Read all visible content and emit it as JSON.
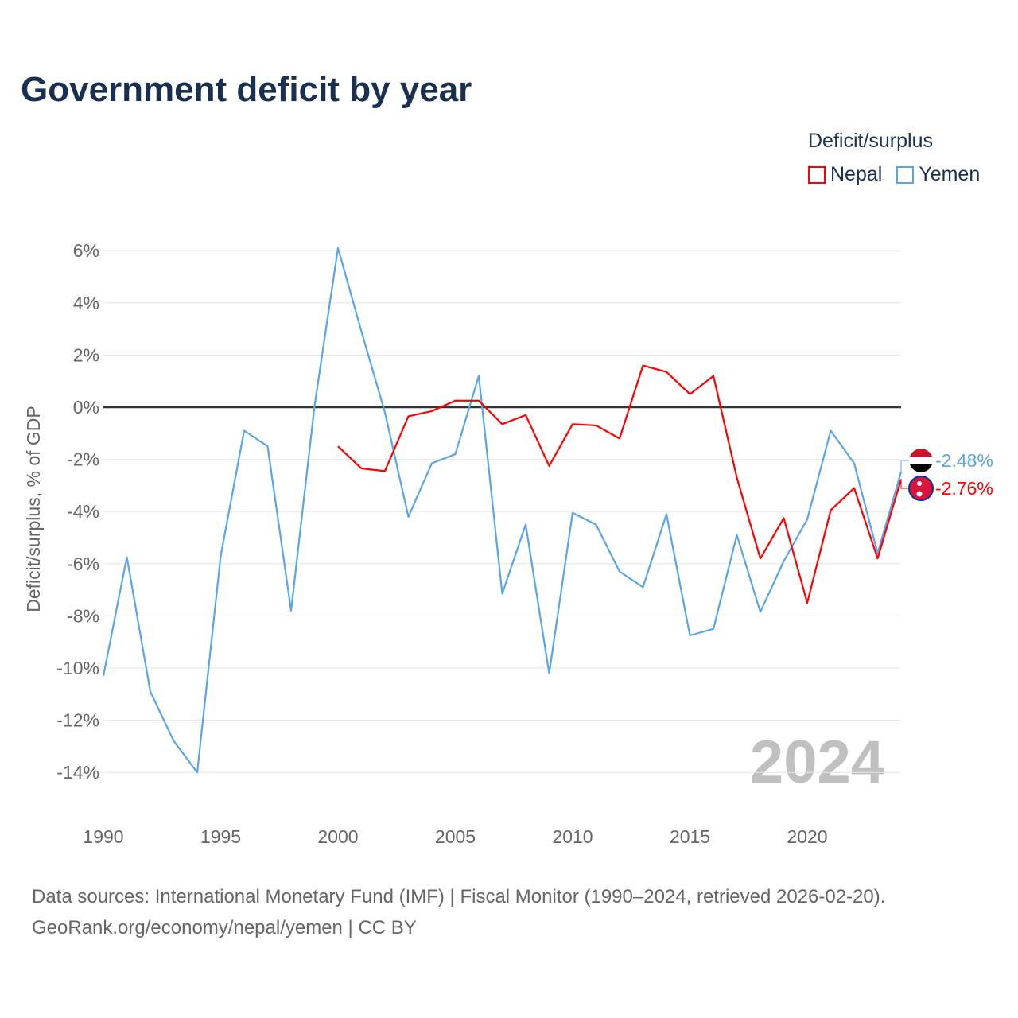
{
  "chart_data": {
    "type": "line",
    "title": "Government deficit by year",
    "xlabel": "",
    "ylabel": "Deficit/surplus, % of GDP",
    "legend_title": "Deficit/surplus",
    "legend_position": "top-right",
    "xlim": [
      1990,
      2024
    ],
    "ylim": [
      -15,
      6.5
    ],
    "x_ticks": [
      1990,
      1995,
      2000,
      2005,
      2010,
      2015,
      2020
    ],
    "y_ticks": [
      6,
      4,
      2,
      0,
      -2,
      -4,
      -6,
      -8,
      -10,
      -12,
      -14
    ],
    "y_tick_labels": [
      "6%",
      "4%",
      "2%",
      "0%",
      "-2%",
      "-4%",
      "-6%",
      "-8%",
      "-10%",
      "-12%",
      "-14%"
    ],
    "grid": true,
    "year_watermark": "2024",
    "series": [
      {
        "name": "Nepal",
        "color": "#ff0000",
        "end_label": "-2.76%",
        "x": [
          2000,
          2001,
          2002,
          2003,
          2004,
          2005,
          2006,
          2007,
          2008,
          2009,
          2010,
          2011,
          2012,
          2013,
          2014,
          2015,
          2016,
          2017,
          2018,
          2019,
          2020,
          2021,
          2022,
          2023,
          2024
        ],
        "values": [
          -1.5,
          -2.35,
          -2.45,
          -0.35,
          -0.15,
          0.25,
          0.25,
          -0.65,
          -0.3,
          -2.25,
          -0.65,
          -0.7,
          -1.2,
          1.6,
          1.35,
          0.5,
          1.2,
          -2.7,
          -5.8,
          -4.25,
          -7.5,
          -3.95,
          -3.1,
          -5.8,
          -2.76
        ]
      },
      {
        "name": "Yemen",
        "color": "#5aa5e8",
        "end_label": "-2.48%",
        "x": [
          1990,
          1991,
          1992,
          1993,
          1994,
          1995,
          1996,
          1997,
          1998,
          1999,
          2000,
          2001,
          2002,
          2003,
          2004,
          2005,
          2006,
          2007,
          2008,
          2009,
          2010,
          2011,
          2012,
          2013,
          2014,
          2015,
          2016,
          2017,
          2018,
          2019,
          2020,
          2021,
          2022,
          2023,
          2024
        ],
        "values": [
          -10.3,
          -5.75,
          -10.9,
          -12.8,
          -14.0,
          -5.7,
          -0.9,
          -1.5,
          -7.8,
          0.05,
          6.1,
          2.9,
          -0.2,
          -4.2,
          -2.15,
          -1.8,
          1.2,
          -7.15,
          -4.5,
          -10.2,
          -4.05,
          -4.5,
          -6.3,
          -6.9,
          -4.1,
          -8.75,
          -8.5,
          -4.9,
          -7.85,
          -5.9,
          -4.3,
          -0.9,
          -2.15,
          -5.6,
          -2.48
        ]
      }
    ]
  },
  "source_line1": "Data sources: International Monetary Fund (IMF) | Fiscal Monitor (1990–2024, retrieved 2026-02-20).",
  "source_line2": "GeoRank.org/economy/nepal/yemen | CC BY"
}
